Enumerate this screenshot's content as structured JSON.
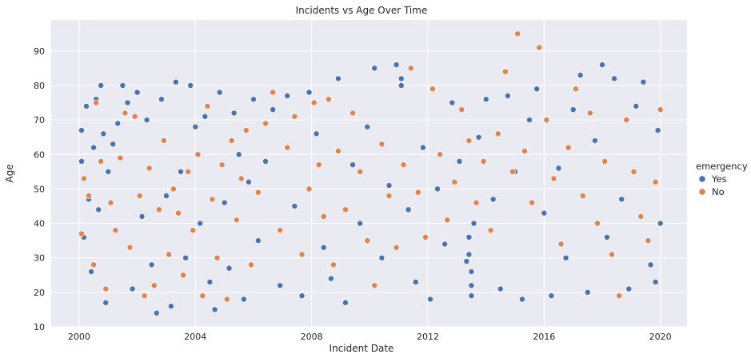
{
  "chart_data": {
    "type": "scatter",
    "title": "Incidents vs Age Over Time",
    "xlabel": "Incident Date",
    "ylabel": "Age",
    "x_type": "date",
    "xlim": [
      "1999-01-15",
      "2020-12-01"
    ],
    "ylim": [
      10,
      99
    ],
    "x_ticks": [
      {
        "value": "2000-01-01",
        "label": "2000"
      },
      {
        "value": "2004-01-01",
        "label": "2004"
      },
      {
        "value": "2008-01-01",
        "label": "2008"
      },
      {
        "value": "2012-01-01",
        "label": "2012"
      },
      {
        "value": "2016-01-01",
        "label": "2016"
      },
      {
        "value": "2020-01-01",
        "label": "2020"
      }
    ],
    "y_ticks": [
      10,
      20,
      30,
      40,
      50,
      60,
      70,
      80,
      90
    ],
    "grid": true,
    "legend": {
      "title": "emergency",
      "placement": "right"
    },
    "colors": {
      "Yes": "#4c72b0",
      "No": "#dd8452"
    },
    "series": [
      {
        "name": "Yes",
        "points": [
          {
            "x": "2000-02-01",
            "y": 67
          },
          {
            "x": "2000-02-01",
            "y": 58
          },
          {
            "x": "2000-03-01",
            "y": 36
          },
          {
            "x": "2000-04-01",
            "y": 74
          },
          {
            "x": "2000-05-01",
            "y": 47
          },
          {
            "x": "2000-06-01",
            "y": 26
          },
          {
            "x": "2000-07-01",
            "y": 62
          },
          {
            "x": "2000-08-01",
            "y": 76
          },
          {
            "x": "2000-09-01",
            "y": 44
          },
          {
            "x": "2000-10-01",
            "y": 80
          },
          {
            "x": "2000-11-01",
            "y": 66
          },
          {
            "x": "2000-12-01",
            "y": 17
          },
          {
            "x": "2001-01-01",
            "y": 55
          },
          {
            "x": "2001-03-01",
            "y": 63
          },
          {
            "x": "2001-05-01",
            "y": 69
          },
          {
            "x": "2001-07-01",
            "y": 80
          },
          {
            "x": "2001-09-01",
            "y": 75
          },
          {
            "x": "2001-11-01",
            "y": 21
          },
          {
            "x": "2002-01-01",
            "y": 78
          },
          {
            "x": "2002-03-01",
            "y": 42
          },
          {
            "x": "2002-05-01",
            "y": 70
          },
          {
            "x": "2002-07-01",
            "y": 28
          },
          {
            "x": "2002-09-01",
            "y": 14
          },
          {
            "x": "2002-11-01",
            "y": 76
          },
          {
            "x": "2003-01-01",
            "y": 48
          },
          {
            "x": "2003-03-01",
            "y": 16
          },
          {
            "x": "2003-05-01",
            "y": 81
          },
          {
            "x": "2003-07-01",
            "y": 55
          },
          {
            "x": "2003-09-01",
            "y": 30
          },
          {
            "x": "2003-11-01",
            "y": 80
          },
          {
            "x": "2004-01-01",
            "y": 68
          },
          {
            "x": "2004-03-01",
            "y": 40
          },
          {
            "x": "2004-05-01",
            "y": 71
          },
          {
            "x": "2004-07-01",
            "y": 23
          },
          {
            "x": "2004-09-01",
            "y": 15
          },
          {
            "x": "2004-11-01",
            "y": 78
          },
          {
            "x": "2005-01-01",
            "y": 46
          },
          {
            "x": "2005-03-01",
            "y": 27
          },
          {
            "x": "2005-05-01",
            "y": 72
          },
          {
            "x": "2005-07-01",
            "y": 60
          },
          {
            "x": "2005-09-01",
            "y": 18
          },
          {
            "x": "2005-11-01",
            "y": 52
          },
          {
            "x": "2006-01-01",
            "y": 76
          },
          {
            "x": "2006-03-01",
            "y": 35
          },
          {
            "x": "2006-06-01",
            "y": 58
          },
          {
            "x": "2006-09-01",
            "y": 73
          },
          {
            "x": "2006-12-01",
            "y": 22
          },
          {
            "x": "2007-03-01",
            "y": 77
          },
          {
            "x": "2007-06-01",
            "y": 45
          },
          {
            "x": "2007-09-01",
            "y": 19
          },
          {
            "x": "2007-12-01",
            "y": 78
          },
          {
            "x": "2008-03-01",
            "y": 66
          },
          {
            "x": "2008-06-01",
            "y": 33
          },
          {
            "x": "2008-09-01",
            "y": 24
          },
          {
            "x": "2008-12-01",
            "y": 82
          },
          {
            "x": "2009-03-01",
            "y": 17
          },
          {
            "x": "2009-06-01",
            "y": 57
          },
          {
            "x": "2009-09-01",
            "y": 40
          },
          {
            "x": "2009-12-01",
            "y": 68
          },
          {
            "x": "2010-03-01",
            "y": 85
          },
          {
            "x": "2010-06-01",
            "y": 30
          },
          {
            "x": "2010-09-01",
            "y": 51
          },
          {
            "x": "2010-12-01",
            "y": 86
          },
          {
            "x": "2011-02-01",
            "y": 82
          },
          {
            "x": "2011-02-01",
            "y": 80
          },
          {
            "x": "2011-05-01",
            "y": 44
          },
          {
            "x": "2011-08-01",
            "y": 23
          },
          {
            "x": "2011-11-01",
            "y": 62
          },
          {
            "x": "2012-02-01",
            "y": 18
          },
          {
            "x": "2012-05-01",
            "y": 50
          },
          {
            "x": "2012-08-01",
            "y": 34
          },
          {
            "x": "2012-11-01",
            "y": 75
          },
          {
            "x": "2013-02-01",
            "y": 58
          },
          {
            "x": "2013-05-01",
            "y": 29
          },
          {
            "x": "2013-06-01",
            "y": 36
          },
          {
            "x": "2013-06-01",
            "y": 31
          },
          {
            "x": "2013-07-01",
            "y": 26
          },
          {
            "x": "2013-07-01",
            "y": 22
          },
          {
            "x": "2013-07-01",
            "y": 19
          },
          {
            "x": "2013-08-01",
            "y": 40
          },
          {
            "x": "2013-10-01",
            "y": 65
          },
          {
            "x": "2014-01-01",
            "y": 76
          },
          {
            "x": "2014-04-01",
            "y": 47
          },
          {
            "x": "2014-07-01",
            "y": 21
          },
          {
            "x": "2014-10-01",
            "y": 77
          },
          {
            "x": "2015-01-01",
            "y": 55
          },
          {
            "x": "2015-04-01",
            "y": 18
          },
          {
            "x": "2015-07-01",
            "y": 70
          },
          {
            "x": "2015-10-01",
            "y": 79
          },
          {
            "x": "2016-01-01",
            "y": 43
          },
          {
            "x": "2016-04-01",
            "y": 19
          },
          {
            "x": "2016-07-01",
            "y": 56
          },
          {
            "x": "2016-10-01",
            "y": 30
          },
          {
            "x": "2017-01-01",
            "y": 73
          },
          {
            "x": "2017-04-01",
            "y": 83
          },
          {
            "x": "2017-07-01",
            "y": 20
          },
          {
            "x": "2017-10-01",
            "y": 64
          },
          {
            "x": "2018-01-01",
            "y": 86
          },
          {
            "x": "2018-03-01",
            "y": 36
          },
          {
            "x": "2018-06-01",
            "y": 82
          },
          {
            "x": "2018-09-01",
            "y": 47
          },
          {
            "x": "2018-12-01",
            "y": 21
          },
          {
            "x": "2019-03-01",
            "y": 74
          },
          {
            "x": "2019-06-01",
            "y": 81
          },
          {
            "x": "2019-09-01",
            "y": 28
          },
          {
            "x": "2019-11-01",
            "y": 23
          },
          {
            "x": "2019-12-01",
            "y": 67
          },
          {
            "x": "2020-01-01",
            "y": 40
          }
        ]
      },
      {
        "name": "No",
        "points": [
          {
            "x": "2000-02-01",
            "y": 37
          },
          {
            "x": "2000-03-01",
            "y": 53
          },
          {
            "x": "2000-05-01",
            "y": 48
          },
          {
            "x": "2000-07-01",
            "y": 28
          },
          {
            "x": "2000-08-01",
            "y": 75
          },
          {
            "x": "2000-10-01",
            "y": 58
          },
          {
            "x": "2000-12-01",
            "y": 21
          },
          {
            "x": "2001-02-01",
            "y": 46
          },
          {
            "x": "2001-04-01",
            "y": 38
          },
          {
            "x": "2001-06-01",
            "y": 59
          },
          {
            "x": "2001-08-01",
            "y": 72
          },
          {
            "x": "2001-10-01",
            "y": 33
          },
          {
            "x": "2001-12-01",
            "y": 71
          },
          {
            "x": "2002-02-01",
            "y": 48
          },
          {
            "x": "2002-04-01",
            "y": 19
          },
          {
            "x": "2002-06-01",
            "y": 56
          },
          {
            "x": "2002-08-01",
            "y": 22
          },
          {
            "x": "2002-10-01",
            "y": 44
          },
          {
            "x": "2002-12-01",
            "y": 64
          },
          {
            "x": "2003-02-01",
            "y": 31
          },
          {
            "x": "2003-04-01",
            "y": 50
          },
          {
            "x": "2003-06-01",
            "y": 43
          },
          {
            "x": "2003-08-01",
            "y": 25
          },
          {
            "x": "2003-10-01",
            "y": 55
          },
          {
            "x": "2003-12-01",
            "y": 38
          },
          {
            "x": "2004-02-01",
            "y": 60
          },
          {
            "x": "2004-04-01",
            "y": 19
          },
          {
            "x": "2004-06-01",
            "y": 74
          },
          {
            "x": "2004-08-01",
            "y": 47
          },
          {
            "x": "2004-10-01",
            "y": 30
          },
          {
            "x": "2004-12-01",
            "y": 57
          },
          {
            "x": "2005-02-01",
            "y": 18
          },
          {
            "x": "2005-04-01",
            "y": 64
          },
          {
            "x": "2005-06-01",
            "y": 41
          },
          {
            "x": "2005-08-01",
            "y": 53
          },
          {
            "x": "2005-10-01",
            "y": 67
          },
          {
            "x": "2005-12-01",
            "y": 28
          },
          {
            "x": "2006-03-01",
            "y": 49
          },
          {
            "x": "2006-06-01",
            "y": 69
          },
          {
            "x": "2006-09-01",
            "y": 78
          },
          {
            "x": "2006-12-01",
            "y": 38
          },
          {
            "x": "2007-03-01",
            "y": 62
          },
          {
            "x": "2007-06-01",
            "y": 71
          },
          {
            "x": "2007-09-01",
            "y": 31
          },
          {
            "x": "2007-12-01",
            "y": 50
          },
          {
            "x": "2008-02-01",
            "y": 75
          },
          {
            "x": "2008-04-01",
            "y": 57
          },
          {
            "x": "2008-06-01",
            "y": 42
          },
          {
            "x": "2008-08-01",
            "y": 76
          },
          {
            "x": "2008-10-01",
            "y": 28
          },
          {
            "x": "2008-12-01",
            "y": 61
          },
          {
            "x": "2009-03-01",
            "y": 44
          },
          {
            "x": "2009-06-01",
            "y": 72
          },
          {
            "x": "2009-09-01",
            "y": 55
          },
          {
            "x": "2009-12-01",
            "y": 35
          },
          {
            "x": "2010-03-01",
            "y": 22
          },
          {
            "x": "2010-06-01",
            "y": 63
          },
          {
            "x": "2010-09-01",
            "y": 48
          },
          {
            "x": "2010-12-01",
            "y": 33
          },
          {
            "x": "2011-03-01",
            "y": 57
          },
          {
            "x": "2011-06-01",
            "y": 85
          },
          {
            "x": "2011-09-01",
            "y": 49
          },
          {
            "x": "2011-12-01",
            "y": 36
          },
          {
            "x": "2012-03-01",
            "y": 79
          },
          {
            "x": "2012-06-01",
            "y": 60
          },
          {
            "x": "2012-09-01",
            "y": 41
          },
          {
            "x": "2012-12-01",
            "y": 52
          },
          {
            "x": "2013-03-01",
            "y": 73
          },
          {
            "x": "2013-06-01",
            "y": 64
          },
          {
            "x": "2013-09-01",
            "y": 46
          },
          {
            "x": "2013-12-01",
            "y": 58
          },
          {
            "x": "2014-03-01",
            "y": 38
          },
          {
            "x": "2014-06-01",
            "y": 66
          },
          {
            "x": "2014-09-01",
            "y": 84
          },
          {
            "x": "2014-12-01",
            "y": 55
          },
          {
            "x": "2015-02-01",
            "y": 95
          },
          {
            "x": "2015-05-01",
            "y": 61
          },
          {
            "x": "2015-08-01",
            "y": 46
          },
          {
            "x": "2015-11-01",
            "y": 91
          },
          {
            "x": "2016-02-01",
            "y": 70
          },
          {
            "x": "2016-05-01",
            "y": 53
          },
          {
            "x": "2016-08-01",
            "y": 34
          },
          {
            "x": "2016-11-01",
            "y": 62
          },
          {
            "x": "2017-02-01",
            "y": 79
          },
          {
            "x": "2017-05-01",
            "y": 48
          },
          {
            "x": "2017-08-01",
            "y": 72
          },
          {
            "x": "2017-11-01",
            "y": 40
          },
          {
            "x": "2018-02-01",
            "y": 58
          },
          {
            "x": "2018-05-01",
            "y": 31
          },
          {
            "x": "2018-08-01",
            "y": 19
          },
          {
            "x": "2018-11-01",
            "y": 70
          },
          {
            "x": "2019-02-01",
            "y": 55
          },
          {
            "x": "2019-05-01",
            "y": 42
          },
          {
            "x": "2019-08-01",
            "y": 35
          },
          {
            "x": "2019-11-01",
            "y": 52
          },
          {
            "x": "2020-01-01",
            "y": 73
          }
        ]
      }
    ]
  }
}
